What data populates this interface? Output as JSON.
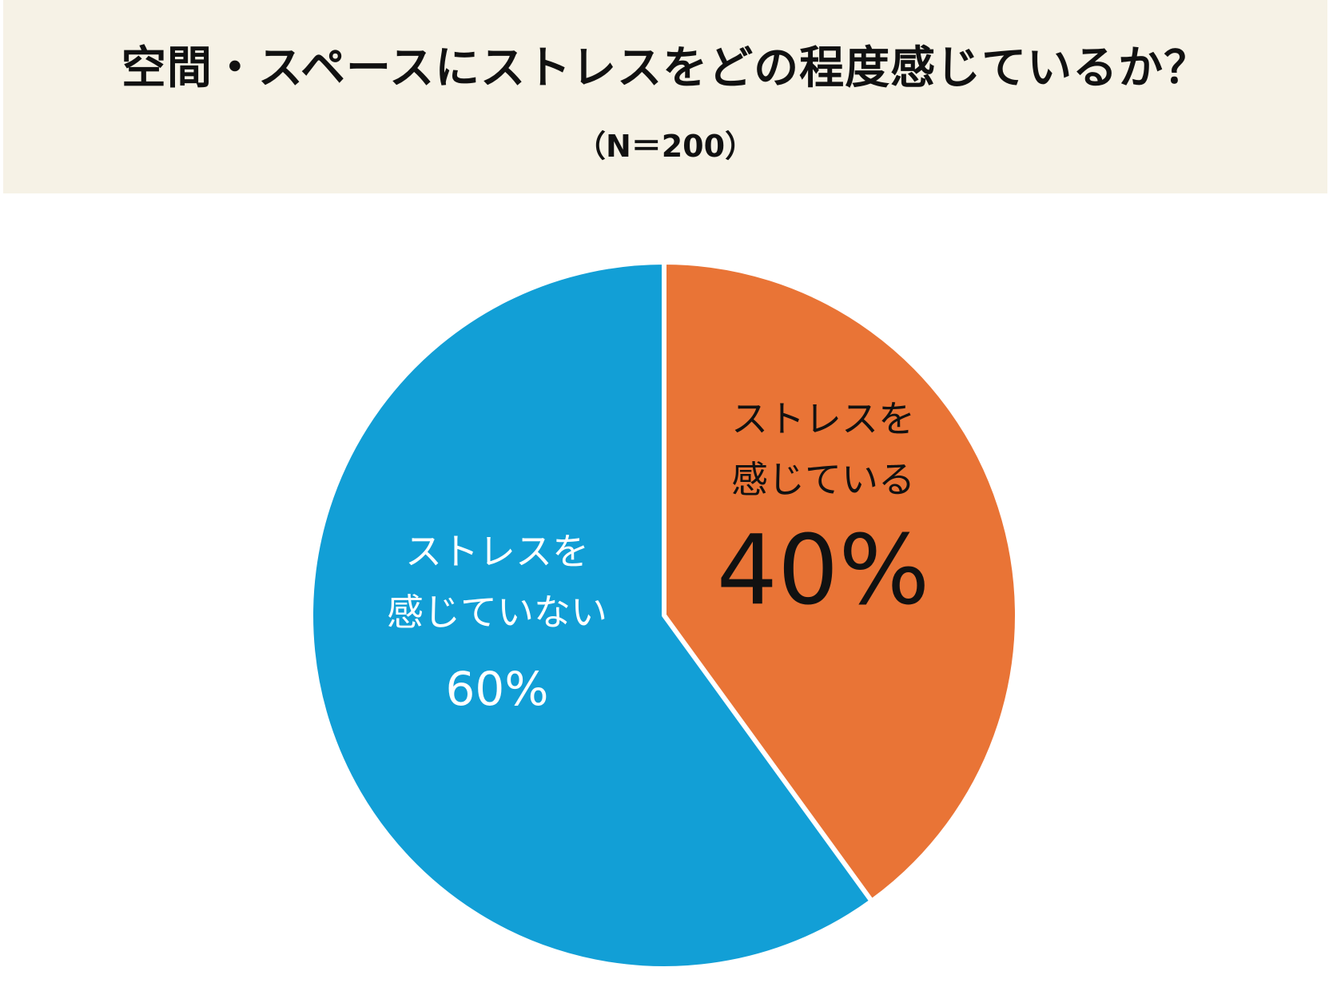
{
  "header": {
    "title": "空間・スペースにストレスをどの程度感じているか？",
    "subtitle": "（N＝200）"
  },
  "chart_data": {
    "type": "pie",
    "title": "空間・スペースにストレスをどの程度感じているか？",
    "subtitle": "（N＝200）",
    "slices": [
      {
        "label_line1": "ストレスを",
        "label_line2": "感じている",
        "percent_label": "40%",
        "value": 40,
        "color": "#e97436",
        "text_color": "#111111"
      },
      {
        "label_line1": "ストレスを",
        "label_line2": "感じていない",
        "percent_label": "60%",
        "value": 60,
        "color": "#129fd6",
        "text_color": "#ffffff"
      }
    ],
    "start_angle": "12 o'clock",
    "direction": "clockwise"
  }
}
